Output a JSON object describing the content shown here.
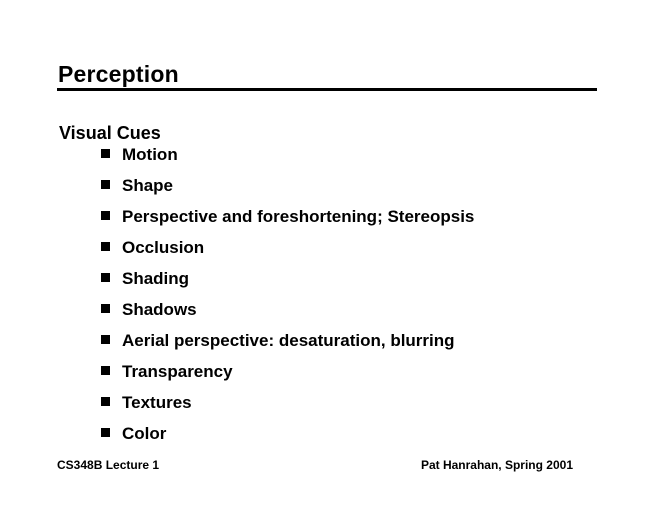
{
  "slide": {
    "title": "Perception",
    "section_heading": "Visual Cues",
    "bullets": [
      "Motion",
      "Shape",
      "Perspective and foreshortening; Stereopsis",
      "Occlusion",
      "Shading",
      "Shadows",
      "Aerial perspective: desaturation, blurring",
      "Transparency",
      "Textures",
      "Color"
    ],
    "footer_left": "CS348B Lecture 1",
    "footer_right": "Pat Hanrahan, Spring 2001",
    "colors": {
      "background": "#ffffff",
      "text": "#000000",
      "rule": "#000000"
    },
    "bullet_icon": "square-bullet"
  }
}
